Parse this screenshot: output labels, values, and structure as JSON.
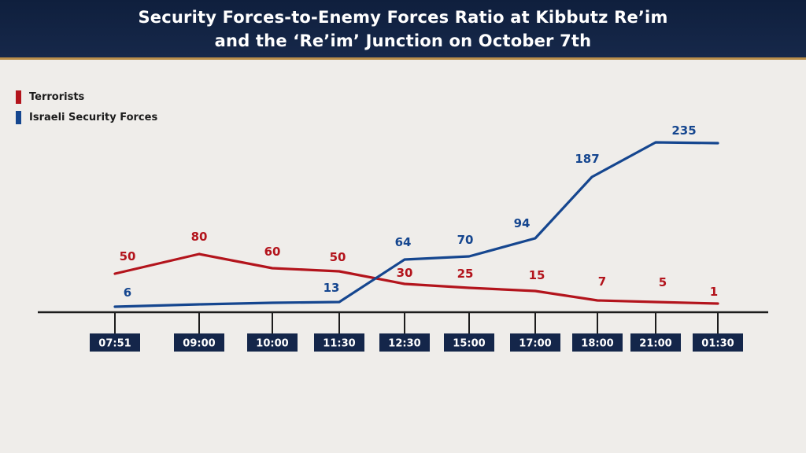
{
  "header": {
    "title_line1": "Security Forces-to-Enemy Forces Ratio at Kibbutz Re’im",
    "title_line2": "and the ‘Re’im’ Junction on October 7th"
  },
  "colors": {
    "terrorists": "#b3141c",
    "security": "#15468f",
    "axis": "#1c1c1c",
    "tick_box": "#14264a"
  },
  "chart_data": {
    "type": "line",
    "title": "Security Forces-to-Enemy Forces Ratio at Kibbutz Re’im and the ‘Re’im’ Junction on October 7th",
    "categories": [
      "07:51",
      "09:00",
      "10:00",
      "11:30",
      "12:30",
      "15:00",
      "17:00",
      "18:00",
      "21:00",
      "01:30"
    ],
    "series": [
      {
        "name": "Terrorists",
        "values": [
          50,
          80,
          60,
          50,
          30,
          25,
          15,
          7,
          5,
          1
        ]
      },
      {
        "name": "Israeli Security Forces",
        "values": [
          6,
          null,
          null,
          13,
          64,
          70,
          94,
          187,
          235,
          null
        ]
      }
    ],
    "series_lines": {
      "Israeli Security Forces": [
        6,
        9,
        11,
        13,
        64,
        70,
        94,
        187,
        235,
        233
      ]
    },
    "legend": "top-left",
    "grid": false,
    "xlabel": "",
    "ylabel": ""
  }
}
